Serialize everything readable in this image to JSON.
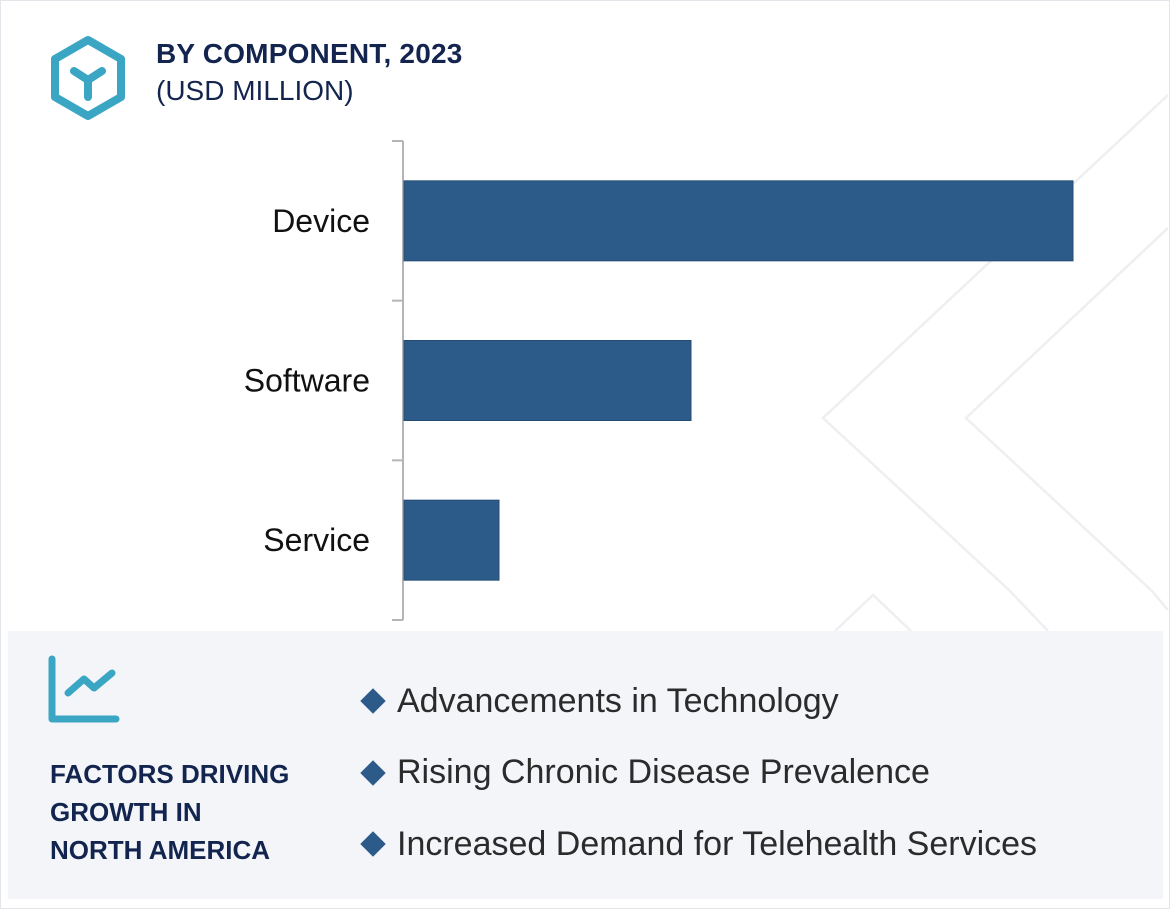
{
  "header": {
    "icon": "hexagon-cube-icon",
    "title": "BY COMPONENT, 2023",
    "subtitle": "(USD MILLION)"
  },
  "chart_data": {
    "type": "bar",
    "orientation": "horizontal",
    "title": "BY COMPONENT, 2023",
    "subtitle": "(USD MILLION)",
    "categories": [
      "Device",
      "Software",
      "Service"
    ],
    "values": [
      100,
      42.9,
      14.2
    ],
    "value_note": "No value axis or data labels shown; values are relative estimates (Device = 100)",
    "xlabel": "",
    "ylabel": "",
    "xlim": [
      0,
      100
    ],
    "grid": false,
    "legend": "none",
    "bar_color": "#2d5b89"
  },
  "panel": {
    "icon": "line-chart-growth-icon",
    "title_lines": [
      "FACTORS DRIVING",
      "GROWTH IN",
      "NORTH AMERICA"
    ],
    "factors": [
      "Advancements in Technology",
      "Rising Chronic Disease Prevalence",
      "Increased Demand for Telehealth Services"
    ]
  },
  "colors": {
    "accent": "#3aa6c4",
    "bar": "#2d5b89",
    "title": "#13254f",
    "panel_bg": "#f3f5f9"
  }
}
